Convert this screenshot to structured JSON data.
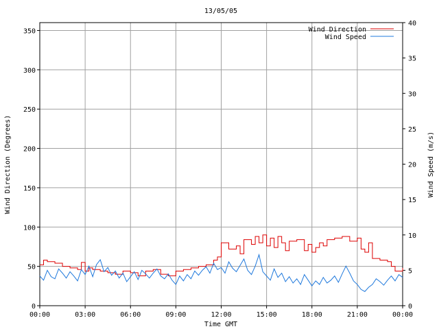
{
  "chart_data": {
    "type": "line",
    "title": "13/05/05",
    "xlabel": "Time GMT",
    "ylabel_left": "Wind Direction (Degrees)",
    "ylabel_right": "Wind Speed (m/s)",
    "x_ticks": [
      "00:00",
      "03:00",
      "06:00",
      "09:00",
      "12:00",
      "15:00",
      "18:00",
      "21:00",
      "00:00"
    ],
    "x_range_hours": [
      0,
      24
    ],
    "y_left_range": [
      0,
      360
    ],
    "y_left_ticks": [
      0,
      50,
      100,
      150,
      200,
      250,
      300,
      350
    ],
    "y_right_range": [
      0,
      40
    ],
    "y_right_ticks": [
      0,
      5,
      10,
      15,
      20,
      25,
      30,
      35,
      40
    ],
    "grid": true,
    "legend_position": "top-right",
    "colors": {
      "direction": "#dd0000",
      "speed": "#1e78dc"
    },
    "series": [
      {
        "name": "Wind Direction",
        "axis": "left",
        "step": true,
        "x": [
          0,
          0.25,
          0.5,
          1,
          1.5,
          2,
          2.5,
          2.75,
          3,
          3.25,
          3.5,
          4,
          4.5,
          5,
          5.5,
          6,
          6.5,
          7,
          7.5,
          8,
          8.5,
          9,
          9.5,
          10,
          10.5,
          11,
          11.5,
          11.75,
          12,
          12.5,
          13,
          13.25,
          13.5,
          14,
          14.25,
          14.5,
          14.75,
          15,
          15.25,
          15.5,
          15.75,
          16,
          16.25,
          16.5,
          17,
          17.5,
          17.75,
          18,
          18.25,
          18.5,
          18.75,
          19,
          19.5,
          20,
          20.5,
          21,
          21.25,
          21.5,
          21.75,
          22,
          22.5,
          23,
          23.25,
          23.5,
          24
        ],
        "y": [
          52,
          58,
          56,
          54,
          50,
          48,
          46,
          55,
          44,
          48,
          46,
          44,
          42,
          40,
          44,
          42,
          38,
          44,
          46,
          40,
          38,
          44,
          46,
          48,
          50,
          52,
          58,
          62,
          80,
          72,
          76,
          66,
          84,
          78,
          88,
          80,
          90,
          76,
          86,
          74,
          88,
          80,
          70,
          82,
          84,
          70,
          78,
          68,
          74,
          80,
          76,
          84,
          86,
          88,
          82,
          86,
          72,
          68,
          80,
          60,
          58,
          56,
          50,
          44,
          48
        ]
      },
      {
        "name": "Wind Speed",
        "axis": "right",
        "x": [
          0,
          0.25,
          0.5,
          0.75,
          1,
          1.25,
          1.5,
          1.75,
          2,
          2.25,
          2.5,
          2.75,
          3,
          3.25,
          3.5,
          3.75,
          4,
          4.25,
          4.5,
          4.75,
          5,
          5.25,
          5.5,
          5.75,
          6,
          6.25,
          6.5,
          6.75,
          7,
          7.25,
          7.5,
          7.75,
          8,
          8.25,
          8.5,
          8.75,
          9,
          9.25,
          9.5,
          9.75,
          10,
          10.25,
          10.5,
          10.75,
          11,
          11.25,
          11.5,
          11.75,
          12,
          12.25,
          12.5,
          12.75,
          13,
          13.25,
          13.5,
          13.75,
          14,
          14.25,
          14.5,
          14.75,
          15,
          15.25,
          15.5,
          15.75,
          16,
          16.25,
          16.5,
          16.75,
          17,
          17.25,
          17.5,
          17.75,
          18,
          18.25,
          18.5,
          18.75,
          19,
          19.25,
          19.5,
          19.75,
          20,
          20.25,
          20.5,
          20.75,
          21,
          21.25,
          21.5,
          21.75,
          22,
          22.25,
          22.5,
          22.75,
          23,
          23.25,
          23.5,
          23.75,
          24
        ],
        "y": [
          4.2,
          3.6,
          5.0,
          4.1,
          3.8,
          5.2,
          4.6,
          3.9,
          4.8,
          4.2,
          3.5,
          5.1,
          4.4,
          5.6,
          4.1,
          5.8,
          6.5,
          4.8,
          5.4,
          4.3,
          4.9,
          3.9,
          4.6,
          3.4,
          4.1,
          4.8,
          3.7,
          5.0,
          4.5,
          3.9,
          4.6,
          5.2,
          4.2,
          3.8,
          4.5,
          3.6,
          3.0,
          4.2,
          3.5,
          4.4,
          3.8,
          4.9,
          4.3,
          5.0,
          5.5,
          4.6,
          6.0,
          5.1,
          5.4,
          4.6,
          6.2,
          5.3,
          4.8,
          5.7,
          6.6,
          5.0,
          4.4,
          5.6,
          7.2,
          4.8,
          4.2,
          3.6,
          5.2,
          4.0,
          4.6,
          3.4,
          4.1,
          3.2,
          3.8,
          3.0,
          4.4,
          3.6,
          2.8,
          3.5,
          3.0,
          4.0,
          3.2,
          3.6,
          4.2,
          3.3,
          4.5,
          5.6,
          4.6,
          3.5,
          3.0,
          2.3,
          2.0,
          2.6,
          3.0,
          3.8,
          3.4,
          2.9,
          3.6,
          4.2,
          3.5,
          4.4,
          4.0
        ]
      }
    ]
  }
}
